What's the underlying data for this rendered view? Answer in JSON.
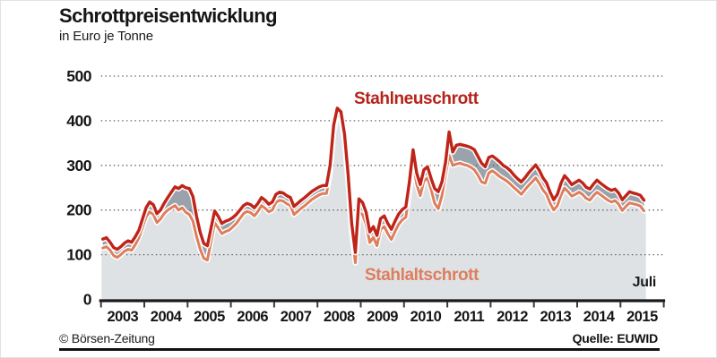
{
  "header": {
    "title": "Schrottpreisentwicklung",
    "subtitle": "in Euro je Tonne"
  },
  "annotations": {
    "series1_label": "Stahlneuschrott",
    "series2_label": "Stahlaltschrott",
    "period_label": "Juli"
  },
  "footer": {
    "left": "© Börsen-Zeitung",
    "right": "Quelle: EUWID"
  },
  "colors": {
    "stahlneuschrott_line": "#bf2419",
    "stahlneuschrott_label": "#b5231a",
    "stahlaltschrott_line": "#dd7e5d",
    "fill_under_lower_series": "#dfe2e5",
    "fill_between_series": "#9aa2ab",
    "gridline": "#666666",
    "axis": "#1a1a1a",
    "text": "#151515"
  },
  "chart_data": {
    "type": "area",
    "title": "Schrottpreisentwicklung",
    "subtitle": "in Euro je Tonne",
    "ylabel": "Euro je Tonne",
    "ylim": [
      0,
      500
    ],
    "yticks": [
      0,
      100,
      200,
      300,
      400,
      500
    ],
    "ytick_labels": [
      "0",
      "100",
      "200",
      "300",
      "400",
      "500"
    ],
    "xtick_labels": [
      "2003",
      "2004",
      "2005",
      "2006",
      "2007",
      "2008",
      "2009",
      "2010",
      "2011",
      "2012",
      "2013",
      "2014",
      "2015"
    ],
    "grid": "horizontal dashed",
    "legend_position": "inline text annotations on plot",
    "start_year": 2003,
    "end_year": 2015,
    "end_month_label": "Juli",
    "points_per_year": 12,
    "series": [
      {
        "name": "Stahlneuschrott",
        "color": "#bf2419",
        "values": [
          135,
          138,
          128,
          116,
          112,
          118,
          126,
          131,
          128,
          140,
          155,
          180,
          205,
          218,
          212,
          192,
          200,
          215,
          228,
          240,
          252,
          248,
          255,
          250,
          248,
          230,
          185,
          150,
          125,
          120,
          160,
          198,
          186,
          170,
          175,
          178,
          183,
          190,
          200,
          210,
          215,
          212,
          205,
          215,
          228,
          222,
          213,
          218,
          235,
          240,
          238,
          232,
          228,
          208,
          215,
          222,
          228,
          235,
          242,
          247,
          252,
          255,
          255,
          300,
          390,
          428,
          420,
          370,
          280,
          170,
          105,
          225,
          217,
          195,
          151,
          163,
          143,
          181,
          187,
          170,
          157,
          175,
          191,
          201,
          207,
          263,
          335,
          283,
          257,
          290,
          297,
          271,
          248,
          241,
          263,
          307,
          375,
          330,
          345,
          347,
          345,
          343,
          340,
          335,
          320,
          305,
          297,
          318,
          321,
          315,
          308,
          300,
          295,
          288,
          278,
          270,
          263,
          272,
          283,
          292,
          301,
          289,
          272,
          261,
          240,
          223,
          235,
          260,
          277,
          268,
          257,
          262,
          267,
          261,
          251,
          247,
          258,
          267,
          260,
          254,
          248,
          244,
          247,
          238,
          223,
          232,
          241,
          238,
          236,
          233,
          222
        ]
      },
      {
        "name": "Stahlaltschrott",
        "color": "#dd7e5d",
        "values": [
          115,
          118,
          110,
          98,
          94,
          100,
          108,
          112,
          110,
          122,
          138,
          162,
          185,
          196,
          190,
          172,
          180,
          192,
          200,
          205,
          210,
          200,
          205,
          195,
          190,
          175,
          140,
          112,
          92,
          88,
          130,
          172,
          160,
          147,
          152,
          155,
          162,
          170,
          181,
          192,
          197,
          194,
          187,
          197,
          210,
          204,
          196,
          200,
          217,
          222,
          220,
          214,
          210,
          190,
          197,
          204,
          210,
          217,
          224,
          229,
          234,
          237,
          237,
          282,
          375,
          415,
          408,
          355,
          262,
          150,
          82,
          195,
          190,
          168,
          127,
          139,
          120,
          157,
          163,
          147,
          134,
          152,
          168,
          178,
          184,
          238,
          310,
          258,
          232,
          265,
          272,
          246,
          215,
          203,
          232,
          280,
          323,
          300,
          303,
          305,
          302,
          300,
          296,
          290,
          278,
          263,
          260,
          283,
          288,
          282,
          275,
          270,
          265,
          258,
          250,
          243,
          235,
          245,
          255,
          263,
          272,
          260,
          245,
          235,
          215,
          200,
          210,
          233,
          249,
          241,
          231,
          235,
          240,
          235,
          226,
          222,
          232,
          240,
          234,
          228,
          222,
          218,
          221,
          213,
          199,
          208,
          216,
          214,
          212,
          209,
          198
        ]
      }
    ]
  }
}
